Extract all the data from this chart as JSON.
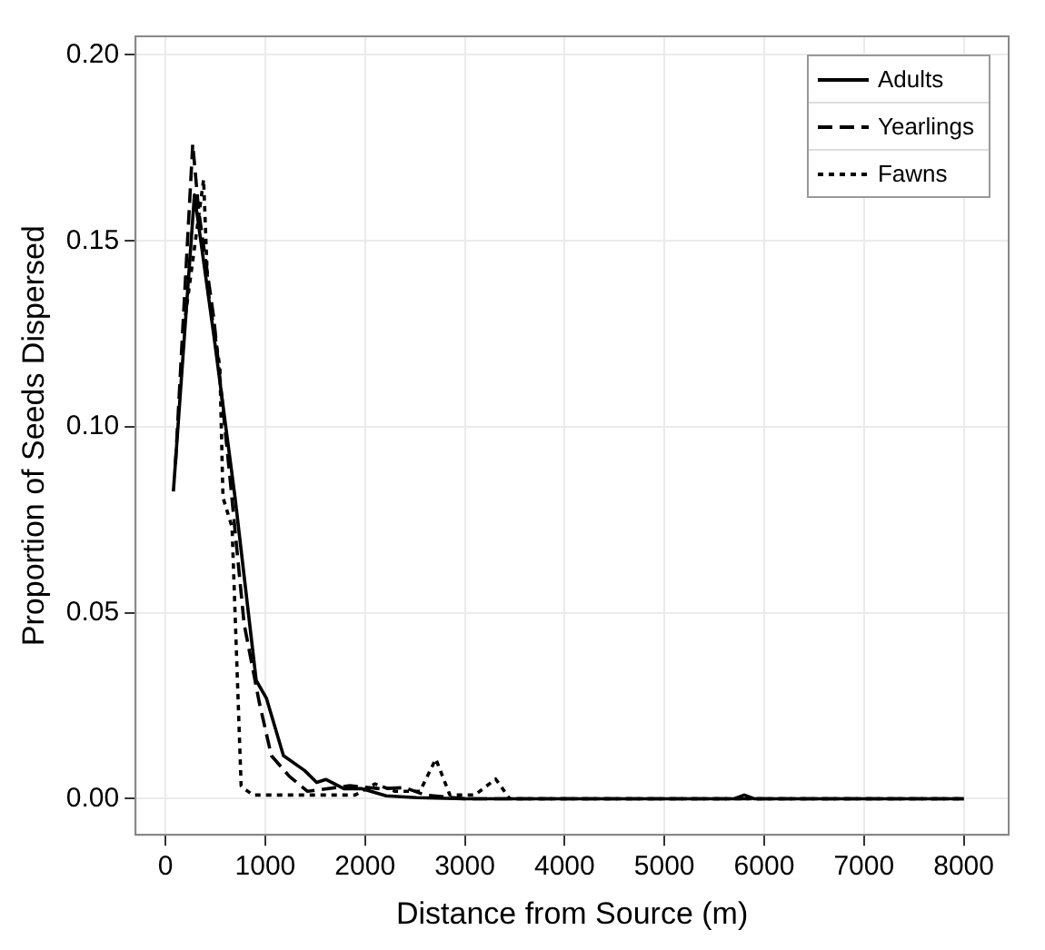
{
  "chart_data": {
    "type": "line",
    "xlabel": "Distance from Source (m)",
    "ylabel": "Proportion of Seeds Dispersed",
    "xlim": [
      -300,
      8450
    ],
    "ylim": [
      -0.0097,
      0.205
    ],
    "xticks": [
      0,
      1000,
      2000,
      3000,
      4000,
      5000,
      6000,
      7000,
      8000
    ],
    "yticks": [
      {
        "value": 0,
        "label": "0.00"
      },
      {
        "value": 0.05,
        "label": "0.05"
      },
      {
        "value": 0.1,
        "label": "0.10"
      },
      {
        "value": 0.15,
        "label": "0.15"
      },
      {
        "value": 0.2,
        "label": "0.20"
      }
    ],
    "grid": true,
    "legend": "top right",
    "marker": "none",
    "series": [
      {
        "name": "Adults",
        "color": "#000000",
        "line_style": "solid",
        "x": [
          79,
          290,
          485,
          697,
          909,
          1012,
          1182,
          1394,
          1515,
          1606,
          1788,
          1970,
          2212,
          2515,
          3000,
          4000,
          5000,
          5700,
          5800,
          5900,
          7000,
          8000
        ],
        "values": [
          0.0826,
          0.1624,
          0.1245,
          0.081,
          0.0318,
          0.027,
          0.0116,
          0.0076,
          0.0044,
          0.0052,
          0.0027,
          0.0027,
          0.0008,
          0.0003,
          0,
          0,
          0,
          0,
          0.001,
          0,
          0,
          0
        ]
      },
      {
        "name": "Yearlings",
        "color": "#000000",
        "line_style": "dashed",
        "x": [
          100,
          273,
          333,
          485,
          636,
          788,
          939,
          1061,
          1242,
          1424,
          1848,
          2151,
          2400,
          2600,
          3000,
          4000,
          5000,
          6000,
          7000,
          8000
        ],
        "values": [
          0.09,
          0.176,
          0.158,
          0.129,
          0.089,
          0.047,
          0.026,
          0.0116,
          0.006,
          0.002,
          0.0035,
          0.0027,
          0.003,
          0.001,
          0,
          0,
          0,
          0,
          0,
          0
        ]
      },
      {
        "name": "Fawns",
        "color": "#000000",
        "line_style": "dotted",
        "x": [
          200,
          382,
          424,
          545,
          576,
          667,
          758,
          788,
          879,
          1500,
          1900,
          2100,
          2300,
          2550,
          2709,
          2850,
          3100,
          3309,
          3450,
          4000,
          6000,
          8000
        ],
        "values": [
          0.13,
          0.1665,
          0.137,
          0.116,
          0.081,
          0.073,
          0.0035,
          0.0027,
          0.001,
          0.001,
          0.001,
          0.004,
          0.002,
          0.002,
          0.0107,
          0.001,
          0.001,
          0.0053,
          0,
          0,
          0,
          0
        ]
      }
    ]
  }
}
